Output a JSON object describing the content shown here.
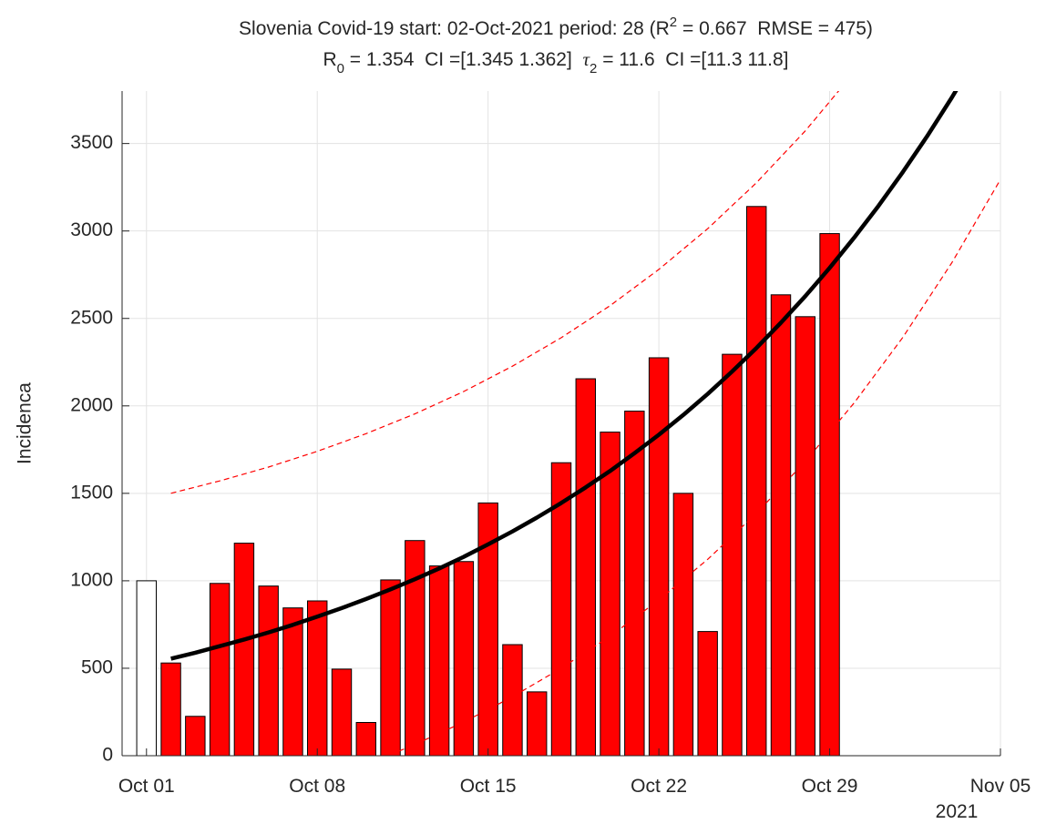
{
  "chart_data": {
    "type": "bar",
    "title": [
      [
        "Slovenia Covid-19 start: 02-Oct-2021 period: 28 (R",
        "2",
        " = 0.667  RMSE = 475)"
      ],
      [
        "R",
        "0",
        " = 1.354  CI =[1.345 1.362]  ",
        "τ",
        "2",
        " = 11.6  CI =[11.3 11.8]"
      ]
    ],
    "ylabel": "Incidenca",
    "xlabel_year": "2021",
    "xlim": [
      "2021-09-30",
      "2021-11-05"
    ],
    "xticks": [
      {
        "value": "2021-10-01",
        "label": "Oct 01"
      },
      {
        "value": "2021-10-08",
        "label": "Oct 08"
      },
      {
        "value": "2021-10-15",
        "label": "Oct 15"
      },
      {
        "value": "2021-10-22",
        "label": "Oct 22"
      },
      {
        "value": "2021-10-29",
        "label": "Oct 29"
      },
      {
        "value": "2021-11-05",
        "label": "Nov 05"
      }
    ],
    "ylim": [
      0,
      3800
    ],
    "yticks": [
      0,
      500,
      1000,
      1500,
      2000,
      2500,
      3000,
      3500
    ],
    "grid": true,
    "series": [
      {
        "type": "bar",
        "color": "#ffffff",
        "x": [
          "2021-10-01"
        ],
        "values": [
          1000
        ]
      },
      {
        "type": "bar",
        "color": "#ff0000",
        "x": [
          "2021-10-02",
          "2021-10-03",
          "2021-10-04",
          "2021-10-05",
          "2021-10-06",
          "2021-10-07",
          "2021-10-08",
          "2021-10-09",
          "2021-10-10",
          "2021-10-11",
          "2021-10-12",
          "2021-10-13",
          "2021-10-14",
          "2021-10-15",
          "2021-10-16",
          "2021-10-17",
          "2021-10-18",
          "2021-10-19",
          "2021-10-20",
          "2021-10-21",
          "2021-10-22",
          "2021-10-23",
          "2021-10-24",
          "2021-10-25",
          "2021-10-26",
          "2021-10-27",
          "2021-10-28",
          "2021-10-29"
        ],
        "values": [
          530,
          225,
          985,
          1215,
          970,
          845,
          885,
          495,
          190,
          1005,
          1230,
          1085,
          1110,
          1445,
          635,
          365,
          1675,
          2155,
          1850,
          1970,
          2275,
          1500,
          710,
          2295,
          3140,
          2635,
          2510,
          2985
        ]
      },
      {
        "type": "line",
        "color": "#000000",
        "width": 4.5,
        "dashed": false,
        "x": [
          "2021-10-02",
          "2021-10-03",
          "2021-10-04",
          "2021-10-05",
          "2021-10-06",
          "2021-10-07",
          "2021-10-08",
          "2021-10-09",
          "2021-10-10",
          "2021-10-11",
          "2021-10-12",
          "2021-10-13",
          "2021-10-14",
          "2021-10-15",
          "2021-10-16",
          "2021-10-17",
          "2021-10-18",
          "2021-10-19",
          "2021-10-20",
          "2021-10-21",
          "2021-10-22",
          "2021-10-23",
          "2021-10-24",
          "2021-10-25",
          "2021-10-26",
          "2021-10-27",
          "2021-10-28",
          "2021-10-29",
          "2021-10-30",
          "2021-10-31",
          "2021-11-01",
          "2021-11-02",
          "2021-11-03",
          "2021-11-04"
        ],
        "values": [
          555,
          589,
          626,
          664,
          705,
          748,
          795,
          844,
          896,
          951,
          1009,
          1071,
          1137,
          1208,
          1282,
          1361,
          1445,
          1534,
          1628,
          1729,
          1835,
          1948,
          2068,
          2196,
          2331,
          2475,
          2627,
          2789,
          2961,
          3143,
          3337,
          3543,
          3761,
          3993
        ]
      },
      {
        "type": "line",
        "color": "#ff0000",
        "width": 1.2,
        "dashed": true,
        "x": [
          "2021-10-02",
          "2021-10-04",
          "2021-10-06",
          "2021-10-08",
          "2021-10-10",
          "2021-10-12",
          "2021-10-14",
          "2021-10-16",
          "2021-10-18",
          "2021-10-20",
          "2021-10-22",
          "2021-10-24",
          "2021-10-26",
          "2021-10-28",
          "2021-10-30"
        ],
        "values": [
          1500,
          1571,
          1650,
          1740,
          1841,
          1954,
          2082,
          2227,
          2390,
          2573,
          2780,
          3013,
          3276,
          3572,
          3906
        ]
      },
      {
        "type": "line",
        "color": "#ff0000",
        "width": 1.2,
        "dashed": true,
        "x": [
          "2021-10-11",
          "2021-10-12",
          "2021-10-14",
          "2021-10-16",
          "2021-10-18",
          "2021-10-20",
          "2021-10-22",
          "2021-10-24",
          "2021-10-26",
          "2021-10-28",
          "2021-10-30",
          "2021-11-01",
          "2021-11-03",
          "2021-11-05"
        ],
        "values": [
          6,
          64,
          192,
          337,
          500,
          683,
          890,
          1123,
          1386,
          1682,
          2016,
          2392,
          2816,
          3294
        ]
      }
    ]
  }
}
